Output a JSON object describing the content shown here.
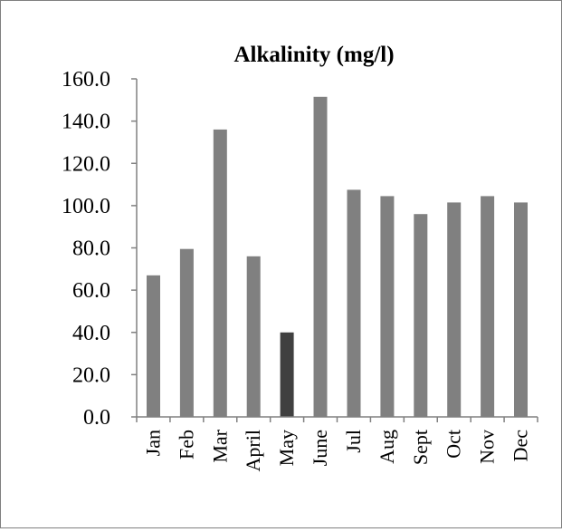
{
  "chart_data": {
    "type": "bar",
    "title": "Alkalinity (mg/l)",
    "xlabel": "",
    "ylabel": "",
    "categories": [
      "Jan",
      "Feb",
      "Mar",
      "April",
      "May",
      "June",
      "Jul",
      "Aug",
      "Sept",
      "Oct",
      "Nov",
      "Dec"
    ],
    "values": [
      67,
      79.5,
      136,
      76,
      40,
      151.5,
      107.5,
      104.5,
      96,
      101.5,
      104.5,
      101.5
    ],
    "ylim": [
      0,
      160
    ],
    "yticks": [
      "0.0",
      "20.0",
      "40.0",
      "60.0",
      "80.0",
      "100.0",
      "120.0",
      "140.0",
      "160.0"
    ],
    "grid": false,
    "legend": "none",
    "colors": {
      "bar": "#808080",
      "highlight_bar": "#404040",
      "highlight_category": "May",
      "axis": "#808080"
    }
  }
}
